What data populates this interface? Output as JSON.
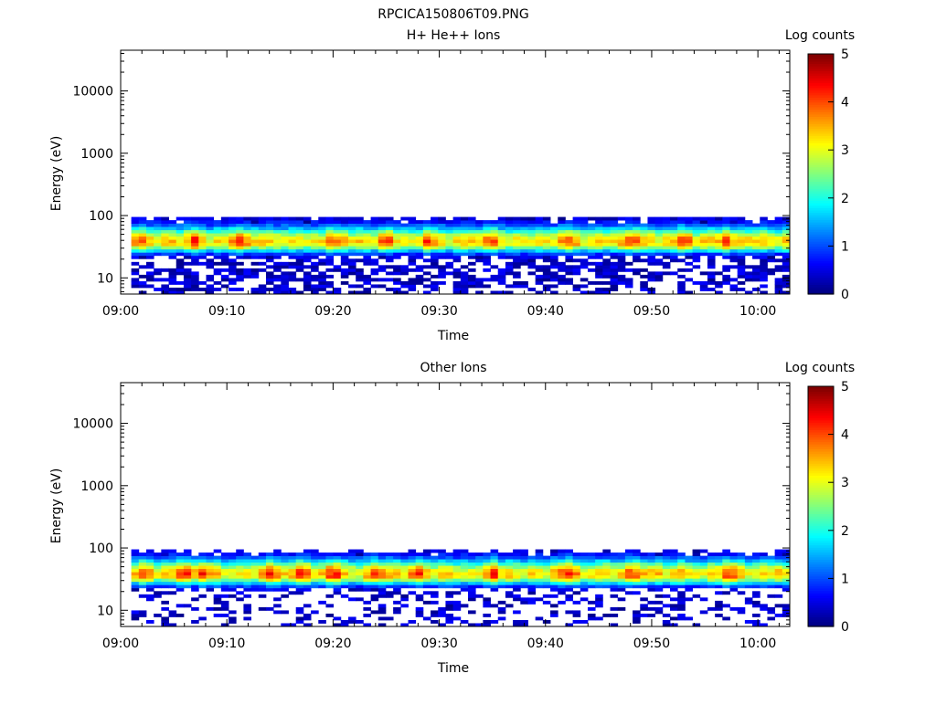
{
  "figure_title": "RPCICA150806T09.PNG",
  "chart_data": [
    {
      "type": "heatmap",
      "title": "H+ He++ Ions",
      "xlabel": "Time",
      "ylabel": "Energy (eV)",
      "x_range": [
        "09:00",
        "10:03"
      ],
      "x_ticks": [
        "09:00",
        "09:10",
        "09:20",
        "09:30",
        "09:40",
        "09:50",
        "10:00"
      ],
      "y_scale": "log",
      "ylim": [
        5.5,
        45000
      ],
      "y_ticks": [
        "10",
        "100",
        "1000",
        "10000"
      ],
      "colorbar": {
        "label": "Log counts",
        "min": 0,
        "max": 5,
        "ticks": [
          "0",
          "1",
          "2",
          "3",
          "4",
          "5"
        ],
        "colormap": "jet"
      },
      "data_x_start": "09:01",
      "data_x_end": "10:03",
      "data_energy_max_eV": 95,
      "data_energy_min_eV": 5.5,
      "peak_energy_eV": 38,
      "peak_log_counts_range": [
        3.0,
        4.5
      ],
      "peak_times": [
        "09:02",
        "09:07",
        "09:11",
        "09:20",
        "09:25",
        "09:29",
        "09:35",
        "09:42",
        "09:48",
        "09:53",
        "09:57"
      ]
    },
    {
      "type": "heatmap",
      "title": "Other Ions",
      "xlabel": "Time",
      "ylabel": "Energy (eV)",
      "x_range": [
        "09:00",
        "10:03"
      ],
      "x_ticks": [
        "09:00",
        "09:10",
        "09:20",
        "09:30",
        "09:40",
        "09:50",
        "10:00"
      ],
      "y_scale": "log",
      "ylim": [
        5.5,
        45000
      ],
      "y_ticks": [
        "10",
        "100",
        "1000",
        "10000"
      ],
      "colorbar": {
        "label": "Log counts",
        "min": 0,
        "max": 5,
        "ticks": [
          "0",
          "1",
          "2",
          "3",
          "4",
          "5"
        ],
        "colormap": "jet"
      },
      "data_x_start": "09:01",
      "data_x_end": "10:03",
      "data_energy_max_eV": 95,
      "data_energy_min_eV": 5.5,
      "peak_energy_eV": 38,
      "peak_log_counts_range": [
        3.0,
        4.6
      ],
      "peak_times": [
        "09:02",
        "09:06",
        "09:08",
        "09:14",
        "09:17",
        "09:20",
        "09:24",
        "09:28",
        "09:35",
        "09:42",
        "09:48",
        "09:57"
      ]
    }
  ]
}
